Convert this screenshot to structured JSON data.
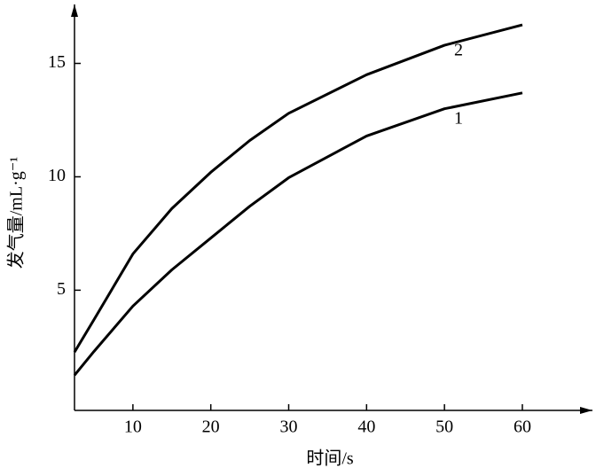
{
  "chart_data": {
    "type": "line",
    "x_label": "时间/s",
    "y_label": "发气量/mL·g⁻¹",
    "x": [
      2.5,
      5,
      10,
      15,
      20,
      25,
      30,
      40,
      50,
      60
    ],
    "series": [
      {
        "name": "1",
        "color": "#000000",
        "values": [
          1.25,
          2.3,
          4.3,
          5.9,
          7.3,
          8.7,
          9.96,
          11.8,
          13.0,
          13.7
        ]
      },
      {
        "name": "2",
        "color": "#000000",
        "values": [
          2.27,
          3.7,
          6.6,
          8.6,
          10.2,
          11.6,
          12.8,
          14.5,
          15.8,
          16.7
        ]
      }
    ],
    "xlim": [
      2.5,
      69
    ],
    "ylim": [
      -0.3,
      17.6
    ],
    "xticks": [
      10,
      20,
      30,
      40,
      50,
      60
    ],
    "yticks": [
      5,
      10,
      15
    ],
    "grid": false
  }
}
